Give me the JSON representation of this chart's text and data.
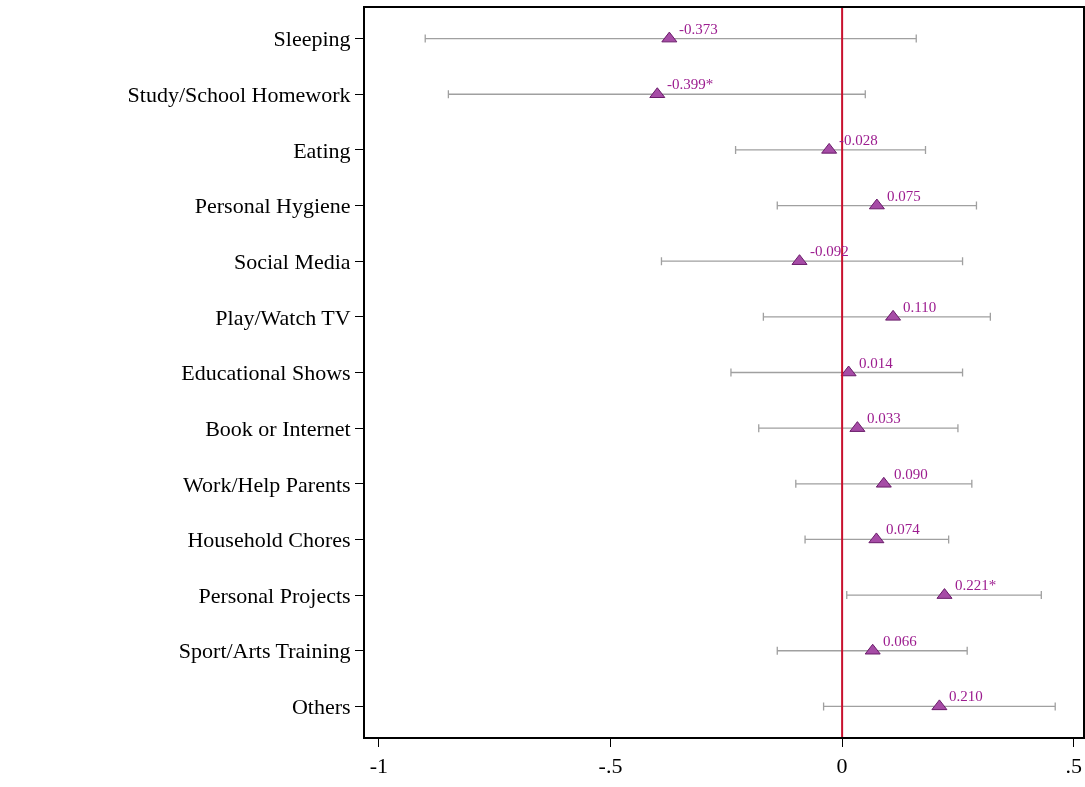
{
  "chart_data": {
    "type": "scatter",
    "orientation": "horizontal",
    "categories": [
      "Sleeping",
      "Study/School Homework",
      "Eating",
      "Personal Hygiene",
      "Social Media",
      "Play/Watch TV",
      "Educational Shows",
      "Book or Internet",
      "Work/Help Parents",
      "Household Chores",
      "Personal Projects",
      "Sport/Arts Training",
      "Others"
    ],
    "values": [
      -0.373,
      -0.399,
      -0.028,
      0.075,
      -0.092,
      0.11,
      0.014,
      0.033,
      0.09,
      0.074,
      0.221,
      0.066,
      0.21
    ],
    "value_labels": [
      "-0.373",
      "-0.399*",
      "-0.028",
      "0.075",
      "-0.092",
      "0.110",
      "0.014",
      "0.033",
      "0.090",
      "0.074",
      "0.221*",
      "0.066",
      "0.210"
    ],
    "errors": [
      [
        -0.9,
        0.16
      ],
      [
        -0.85,
        0.05
      ],
      [
        -0.23,
        0.18
      ],
      [
        -0.14,
        0.29
      ],
      [
        -0.39,
        0.26
      ],
      [
        -0.17,
        0.32
      ],
      [
        -0.24,
        0.26
      ],
      [
        -0.18,
        0.25
      ],
      [
        -0.1,
        0.28
      ],
      [
        -0.08,
        0.23
      ],
      [
        0.01,
        0.43
      ],
      [
        -0.14,
        0.27
      ],
      [
        -0.04,
        0.46
      ]
    ],
    "color": "#a64ca6",
    "marker": "triangle",
    "xlim": [
      -1.03,
      0.52
    ],
    "xticks": [
      {
        "value": -1,
        "label": "-1"
      },
      {
        "value": -0.5,
        "label": "-.5"
      },
      0,
      {
        "value": 0.5,
        "label": ".5"
      }
    ],
    "ref_lines": [
      {
        "axis": "x",
        "value": 0,
        "color": "#c8102e"
      }
    ],
    "grid": false,
    "legend": false
  }
}
